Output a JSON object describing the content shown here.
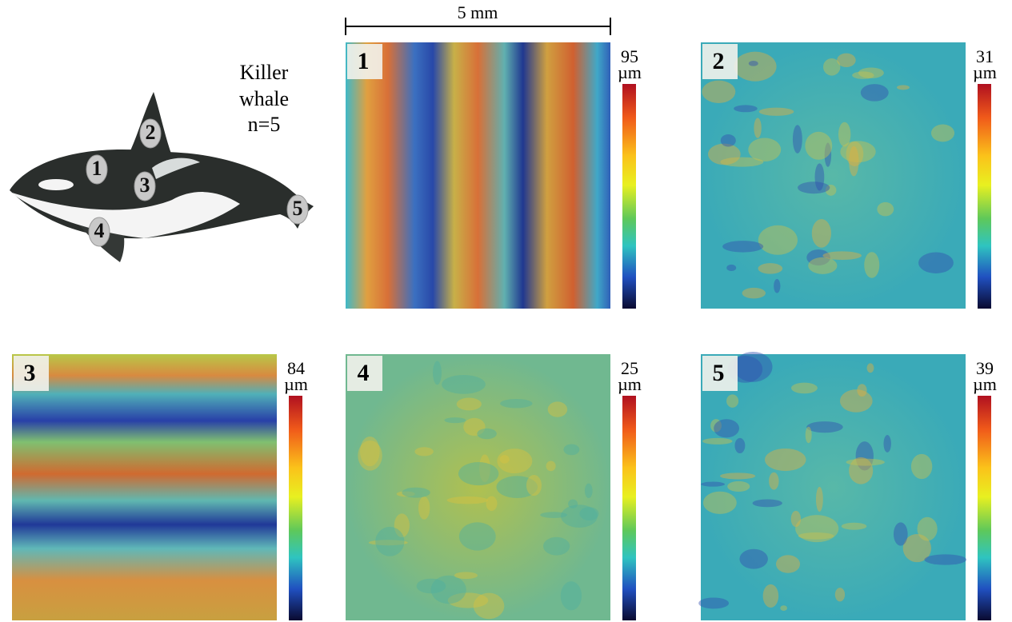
{
  "scale_bar": "5 mm",
  "species": [
    "Killer",
    "whale",
    "n=5"
  ],
  "whale_markers": [
    "1",
    "2",
    "3",
    "4",
    "5"
  ],
  "panels": [
    {
      "label": "1",
      "max": "95",
      "unit": "µm"
    },
    {
      "label": "2",
      "max": "31",
      "unit": "µm"
    },
    {
      "label": "3",
      "max": "84",
      "unit": "µm"
    },
    {
      "label": "4",
      "max": "25",
      "unit": "µm"
    },
    {
      "label": "5",
      "max": "39",
      "unit": "µm"
    }
  ]
}
